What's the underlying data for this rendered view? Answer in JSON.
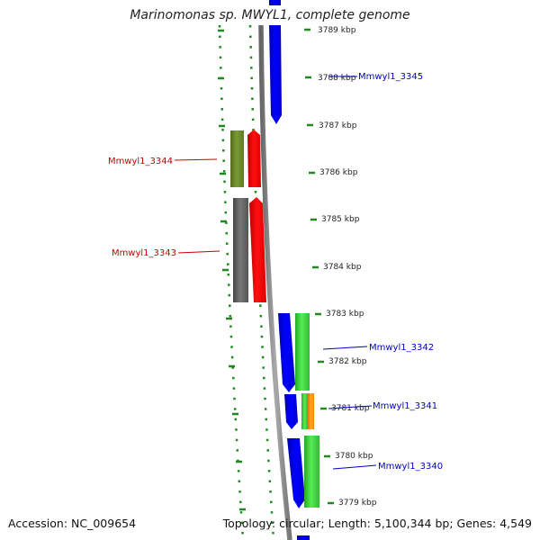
{
  "title": "Marinomonas sp. MWYL1, complete genome",
  "footer": {
    "accession": "Accession: NC_009654",
    "topology": "Topology: circular; Length: 5,100,344 bp; Genes: 4,549"
  },
  "tick_labels": [
    "3789 kbp",
    "3788 kbp",
    "3787 kbp",
    "3786 kbp",
    "3785 kbp",
    "3784 kbp",
    "3783 kbp",
    "3782 kbp",
    "3781 kbp",
    "3780 kbp",
    "3779 kbp"
  ],
  "gene_labels": [
    {
      "name": "Mmwyl1_3345",
      "color": "#0000cc"
    },
    {
      "name": "Mmwyl1_3344",
      "color": "#cc0000"
    },
    {
      "name": "Mmwyl1_3343",
      "color": "#cc0000"
    },
    {
      "name": "Mmwyl1_3342",
      "color": "#0000cc"
    },
    {
      "name": "Mmwyl1_3341",
      "color": "#0000cc"
    },
    {
      "name": "Mmwyl1_3340",
      "color": "#0000cc"
    }
  ],
  "colors": {
    "forward_cds": "#ff0000",
    "reverse_cds": "#0000ee",
    "gc_high": "#33cc33",
    "gc_low_olive": "#6b8e23",
    "gc_low_gray": "#555555",
    "orange_feature": "#ff9900",
    "backbone": "#888888",
    "ruler": "#228822"
  }
}
